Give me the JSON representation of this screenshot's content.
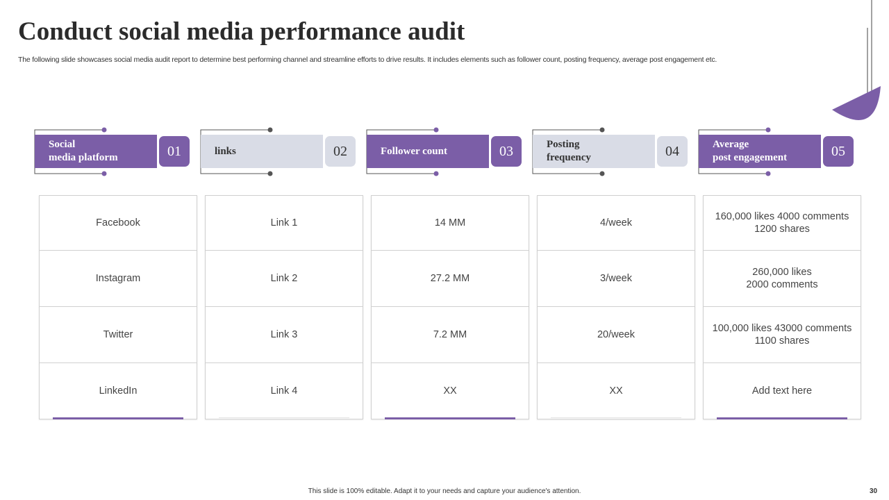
{
  "header": {
    "title": "Conduct social media performance audit",
    "subtitle": "The following slide showcases social media audit report to determine best performing channel and streamline efforts to drive results. It includes elements such as follower count, posting frequency, average post engagement etc."
  },
  "columns": [
    {
      "label": [
        "Social",
        "media platform"
      ],
      "number": "01",
      "cells": [
        [
          "Facebook"
        ],
        [
          "Instagram"
        ],
        [
          "Twitter"
        ],
        [
          "LinkedIn"
        ]
      ]
    },
    {
      "label": [
        "links"
      ],
      "number": "02",
      "cells": [
        [
          "Link 1"
        ],
        [
          "Link 2"
        ],
        [
          "Link 3"
        ],
        [
          "Link 4"
        ]
      ]
    },
    {
      "label": [
        "Follower count"
      ],
      "number": "03",
      "cells": [
        [
          "14  MM"
        ],
        [
          "27.2 MM"
        ],
        [
          "7.2 MM"
        ],
        [
          "XX"
        ]
      ]
    },
    {
      "label": [
        "Posting",
        "frequency"
      ],
      "number": "04",
      "cells": [
        [
          "4/week"
        ],
        [
          "3/week"
        ],
        [
          "20/week"
        ],
        [
          "XX"
        ]
      ]
    },
    {
      "label": [
        "Average",
        "post engagement"
      ],
      "number": "05",
      "cells": [
        [
          "160,000 likes 4000 comments",
          "1200 shares"
        ],
        [
          "260,000 likes",
          "2000 comments"
        ],
        [
          "100,000 likes 43000 comments",
          "1100 shares"
        ],
        [
          "Add text here"
        ]
      ]
    }
  ],
  "footer": {
    "note": "This slide is 100% editable.  Adapt it to your needs and capture your audience's attention.",
    "page": "30"
  }
}
